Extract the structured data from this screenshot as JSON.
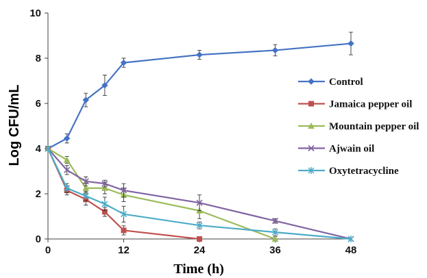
{
  "chart_data": {
    "type": "line",
    "title": "",
    "xlabel": "Time (h)",
    "ylabel": "Log CFU/mL",
    "x": [
      0,
      3,
      6,
      9,
      12,
      24,
      36,
      48
    ],
    "x_ticks": [
      0,
      12,
      24,
      36,
      48
    ],
    "y_ticks": [
      0,
      2,
      4,
      6,
      8,
      10
    ],
    "xlim": [
      0,
      48
    ],
    "ylim": [
      0,
      10
    ],
    "grid": false,
    "legend_position": "right",
    "series": [
      {
        "name": "Control",
        "color": "#4472C4",
        "marker": "diamond",
        "x": [
          0,
          3,
          6,
          9,
          12,
          24,
          36,
          48
        ],
        "y": [
          4.0,
          4.45,
          6.15,
          6.8,
          7.8,
          8.15,
          8.35,
          8.65
        ],
        "err": [
          0,
          0.2,
          0.3,
          0.45,
          0.2,
          0.2,
          0.25,
          0.5
        ]
      },
      {
        "name": "Jamaica pepper oil",
        "color": "#C0504D",
        "marker": "square",
        "x": [
          0,
          3,
          6,
          9,
          12,
          24
        ],
        "y": [
          4.0,
          2.15,
          1.75,
          1.2,
          0.38,
          0.0
        ],
        "err": [
          0,
          0.2,
          0.25,
          0.2,
          0.2,
          0.1
        ]
      },
      {
        "name": "Mountain pepper oil",
        "color": "#9BBB59",
        "marker": "triangle",
        "x": [
          0,
          3,
          6,
          9,
          12,
          24,
          36
        ],
        "y": [
          4.0,
          3.5,
          2.25,
          2.25,
          1.95,
          1.25,
          0.0
        ],
        "err": [
          0,
          0.15,
          0.2,
          0.25,
          0.3,
          0.35,
          0.1
        ]
      },
      {
        "name": "Ajwain oil",
        "color": "#8064A2",
        "marker": "x",
        "x": [
          0,
          3,
          6,
          9,
          12,
          24,
          36,
          48
        ],
        "y": [
          4.0,
          3.05,
          2.55,
          2.45,
          2.15,
          1.6,
          0.8,
          0.0
        ],
        "err": [
          0,
          0.2,
          0.2,
          0.15,
          0.3,
          0.35,
          0.1,
          0
        ]
      },
      {
        "name": "Oxytetracycline",
        "color": "#4BACC6",
        "marker": "asterisk",
        "x": [
          0,
          3,
          6,
          9,
          12,
          24,
          36,
          48
        ],
        "y": [
          4.0,
          2.25,
          1.9,
          1.55,
          1.1,
          0.6,
          0.3,
          0.0
        ],
        "err": [
          0,
          0.2,
          0.2,
          0.3,
          0.35,
          0.15,
          0.15,
          0
        ]
      }
    ]
  }
}
